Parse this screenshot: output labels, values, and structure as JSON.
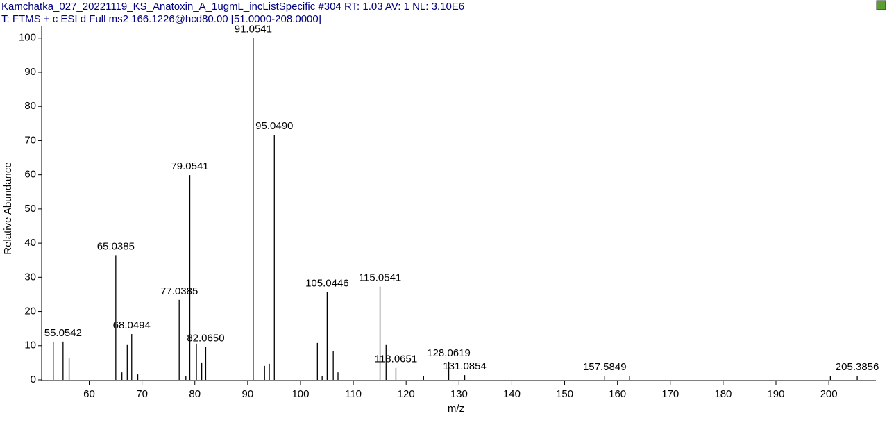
{
  "chart_data": {
    "type": "stick",
    "title": "Kamchatka_027_20221119_KS_Anatoxin_A_1ugmL_incListSpecific #304   RT: 1.03   AV: 1   NL: 3.10E6",
    "subtitle": "T: FTMS + c ESI d Full ms2 166.1226@hcd80.00 [51.0000-208.0000]",
    "x_label": "m/z",
    "y_label": "Relative Abundance",
    "x": [
      53.2,
      55.0542,
      56.2,
      65.0385,
      66.2,
      67.2,
      68.0494,
      69.2,
      77.0385,
      78.3,
      79.0541,
      80.3,
      81.3,
      82.065,
      91.0541,
      93.2,
      94.1,
      95.049,
      103.2,
      104.1,
      105.0446,
      106.2,
      107.1,
      115.0541,
      116.2,
      118.0651,
      123.3,
      128.0619,
      131.0854,
      157.5849,
      162.3,
      200.3,
      205.3856
    ],
    "values": [
      11,
      11.2,
      6.5,
      36.5,
      2.2,
      10.2,
      13.4,
      1.6,
      23.4,
      1.2,
      59.9,
      10.6,
      5.1,
      9.6,
      100,
      4.1,
      4.7,
      71.7,
      10.8,
      1.2,
      25.7,
      8.4,
      2.2,
      27.3,
      10.2,
      3.5,
      1.2,
      5.3,
      1.4,
      1.2,
      1.2,
      1.2,
      1.2
    ],
    "peak_labels": [
      null,
      "55.0542",
      null,
      "65.0385",
      null,
      null,
      "68.0494",
      null,
      "77.0385",
      null,
      "79.0541",
      null,
      null,
      "82.0650",
      "91.0541",
      null,
      null,
      "95.0490",
      null,
      null,
      "105.0446",
      null,
      null,
      "115.0541",
      null,
      "118.0651",
      null,
      "128.0619",
      "131.0854",
      "157.5849",
      null,
      null,
      "205.3856"
    ],
    "color": "#000000",
    "xlim": [
      51,
      208
    ],
    "ylim": [
      0,
      103
    ],
    "xticks": [
      60,
      70,
      80,
      90,
      100,
      110,
      120,
      130,
      140,
      150,
      160,
      170,
      180,
      190,
      200
    ],
    "yticks": [
      0,
      10,
      20,
      30,
      40,
      50,
      60,
      70,
      80,
      90,
      100
    ]
  }
}
